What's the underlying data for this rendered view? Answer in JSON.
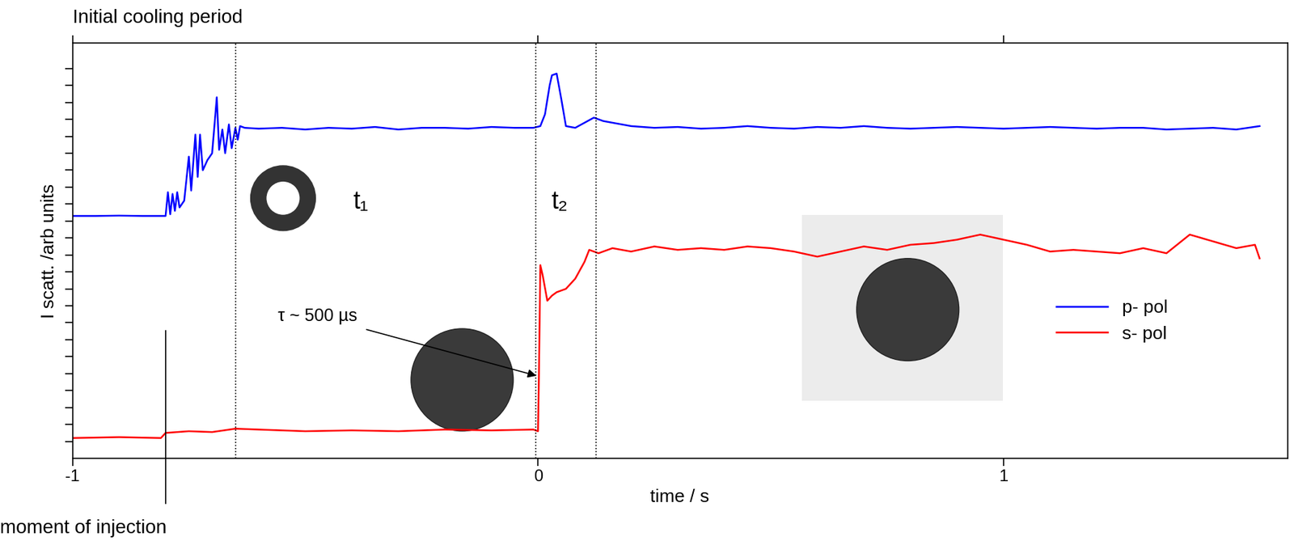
{
  "chart_data": {
    "type": "line",
    "x_label": "time / s",
    "y_label": "I scatt. /arb units",
    "annotations": {
      "top": "Initial cooling period",
      "injection": "moment of injection",
      "t1": "t₁",
      "t2": "t₂",
      "tau": "τ ~ 500 µs"
    },
    "vlines": [
      {
        "x": -0.8,
        "line_style": "solid"
      },
      {
        "x": -0.65,
        "line_style": "dotted"
      },
      {
        "x": -0.005,
        "line_style": "dotted"
      },
      {
        "x": 0.125,
        "line_style": "dotted"
      }
    ],
    "xlim": [
      -1,
      1.61
    ],
    "xticks": [
      -1,
      0,
      1
    ],
    "ylim": [
      0,
      24.5
    ],
    "yticks": [
      1,
      2,
      3,
      4,
      5,
      6,
      7,
      8,
      9,
      10,
      11,
      12,
      13,
      14,
      15,
      16,
      17,
      18,
      19,
      20,
      21,
      22,
      23
    ],
    "tick_labels": "x",
    "legend": "lower right",
    "series": [
      {
        "name": "p- pol",
        "color": "#0000ff",
        "x": [
          -1.0,
          -0.95,
          -0.9,
          -0.85,
          -0.8,
          -0.795,
          -0.79,
          -0.785,
          -0.78,
          -0.775,
          -0.77,
          -0.76,
          -0.75,
          -0.745,
          -0.736,
          -0.731,
          -0.726,
          -0.72,
          -0.71,
          -0.7,
          -0.69,
          -0.685,
          -0.678,
          -0.672,
          -0.664,
          -0.658,
          -0.65,
          -0.645,
          -0.64,
          -0.63,
          -0.6,
          -0.55,
          -0.5,
          -0.45,
          -0.4,
          -0.35,
          -0.3,
          -0.25,
          -0.2,
          -0.15,
          -0.1,
          -0.05,
          -0.01,
          0.005,
          0.015,
          0.025,
          0.03,
          0.04,
          0.05,
          0.06,
          0.08,
          0.1,
          0.12,
          0.14,
          0.2,
          0.25,
          0.3,
          0.35,
          0.4,
          0.45,
          0.5,
          0.55,
          0.6,
          0.65,
          0.7,
          0.75,
          0.8,
          0.85,
          0.9,
          0.95,
          1.0,
          1.05,
          1.1,
          1.15,
          1.2,
          1.25,
          1.3,
          1.35,
          1.4,
          1.45,
          1.5,
          1.55
        ],
        "values": [
          14.3,
          14.3,
          14.32,
          14.3,
          14.3,
          15.7,
          14.4,
          15.6,
          14.6,
          15.7,
          14.8,
          15.2,
          17.8,
          15.8,
          19.1,
          16.6,
          19.1,
          17.0,
          17.6,
          18.0,
          21.3,
          18.2,
          19.4,
          18.0,
          19.7,
          18.3,
          19.5,
          18.8,
          19.6,
          19.5,
          19.45,
          19.5,
          19.4,
          19.5,
          19.45,
          19.55,
          19.4,
          19.5,
          19.5,
          19.45,
          19.55,
          19.5,
          19.5,
          19.6,
          20.3,
          22.0,
          22.6,
          22.7,
          21.2,
          19.6,
          19.5,
          19.8,
          20.1,
          19.9,
          19.6,
          19.5,
          19.55,
          19.45,
          19.5,
          19.6,
          19.5,
          19.45,
          19.55,
          19.5,
          19.6,
          19.5,
          19.45,
          19.5,
          19.55,
          19.5,
          19.45,
          19.5,
          19.55,
          19.5,
          19.45,
          19.5,
          19.5,
          19.4,
          19.45,
          19.5,
          19.4,
          19.6
        ]
      },
      {
        "name": "s- pol",
        "color": "#ff0000",
        "x": [
          -1.0,
          -0.9,
          -0.81,
          -0.8,
          -0.75,
          -0.7,
          -0.65,
          -0.6,
          -0.5,
          -0.4,
          -0.3,
          -0.2,
          -0.1,
          -0.01,
          0.0,
          0.002,
          0.005,
          0.01,
          0.02,
          0.03,
          0.04,
          0.06,
          0.08,
          0.1,
          0.11,
          0.13,
          0.16,
          0.2,
          0.25,
          0.3,
          0.35,
          0.4,
          0.45,
          0.5,
          0.55,
          0.6,
          0.65,
          0.7,
          0.75,
          0.8,
          0.85,
          0.9,
          0.95,
          1.0,
          1.05,
          1.1,
          1.15,
          1.2,
          1.25,
          1.3,
          1.35,
          1.4,
          1.45,
          1.5,
          1.54,
          1.55
        ],
        "values": [
          1.2,
          1.25,
          1.2,
          1.5,
          1.6,
          1.55,
          1.75,
          1.7,
          1.6,
          1.65,
          1.6,
          1.7,
          1.65,
          1.7,
          1.6,
          5.0,
          11.4,
          10.8,
          9.3,
          9.6,
          9.8,
          10.0,
          10.6,
          11.6,
          12.3,
          12.1,
          12.4,
          12.2,
          12.5,
          12.3,
          12.4,
          12.3,
          12.5,
          12.4,
          12.2,
          11.9,
          12.2,
          12.5,
          12.3,
          12.6,
          12.7,
          12.9,
          13.2,
          12.9,
          12.6,
          12.2,
          12.3,
          12.2,
          12.1,
          12.4,
          12.1,
          13.2,
          12.8,
          12.4,
          12.6,
          11.8
        ]
      }
    ]
  }
}
